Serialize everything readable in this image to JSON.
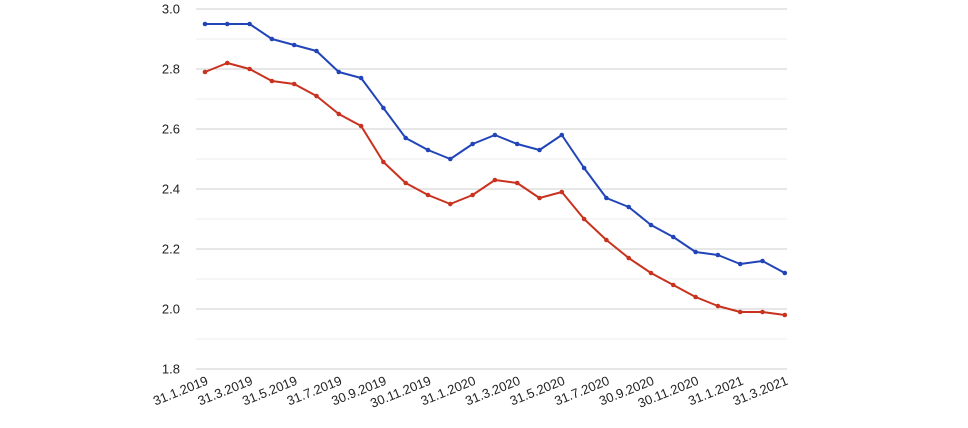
{
  "chart_data": {
    "type": "line",
    "title": "",
    "xlabel": "",
    "ylabel": "",
    "ylim": [
      1.8,
      3.0
    ],
    "yticks": [
      1.8,
      2.0,
      2.2,
      2.4,
      2.6,
      2.8,
      3.0
    ],
    "ytick_labels": [
      "1.8",
      "2.0",
      "2.2",
      "2.4",
      "2.6",
      "2.8",
      "3.0"
    ],
    "grid": true,
    "legend": "none",
    "x": [
      "31.1.2019",
      "28.2.2019",
      "31.3.2019",
      "30.4.2019",
      "31.5.2019",
      "30.6.2019",
      "31.7.2019",
      "31.8.2019",
      "30.9.2019",
      "31.10.2019",
      "30.11.2019",
      "31.12.2019",
      "31.1.2020",
      "29.2.2020",
      "31.3.2020",
      "30.4.2020",
      "31.5.2020",
      "30.6.2020",
      "31.7.2020",
      "31.8.2020",
      "30.9.2020",
      "31.10.2020",
      "30.11.2020",
      "31.12.2020",
      "31.1.2021",
      "28.2.2021",
      "31.3.2021"
    ],
    "xtick_labels": [
      "31.1.2019",
      "31.3.2019",
      "31.5.2019",
      "31.7.2019",
      "30.9.2019",
      "30.11.2019",
      "31.1.2020",
      "31.3.2020",
      "31.5.2020",
      "31.7.2020",
      "30.9.2020",
      "30.11.2020",
      "31.1.2021",
      "31.3.2021"
    ],
    "series": [
      {
        "color": "#2144b8",
        "values": [
          2.95,
          2.95,
          2.95,
          2.9,
          2.88,
          2.86,
          2.79,
          2.77,
          2.67,
          2.57,
          2.53,
          2.5,
          2.55,
          2.58,
          2.55,
          2.53,
          2.58,
          2.47,
          2.37,
          2.34,
          2.28,
          2.24,
          2.19,
          2.18,
          2.15,
          2.16,
          2.12
        ]
      },
      {
        "color": "#c8321e",
        "values": [
          2.79,
          2.82,
          2.8,
          2.76,
          2.75,
          2.71,
          2.65,
          2.61,
          2.49,
          2.42,
          2.38,
          2.35,
          2.38,
          2.43,
          2.42,
          2.37,
          2.39,
          2.3,
          2.23,
          2.17,
          2.12,
          2.08,
          2.04,
          2.01,
          1.99,
          1.99,
          1.98
        ]
      }
    ]
  }
}
